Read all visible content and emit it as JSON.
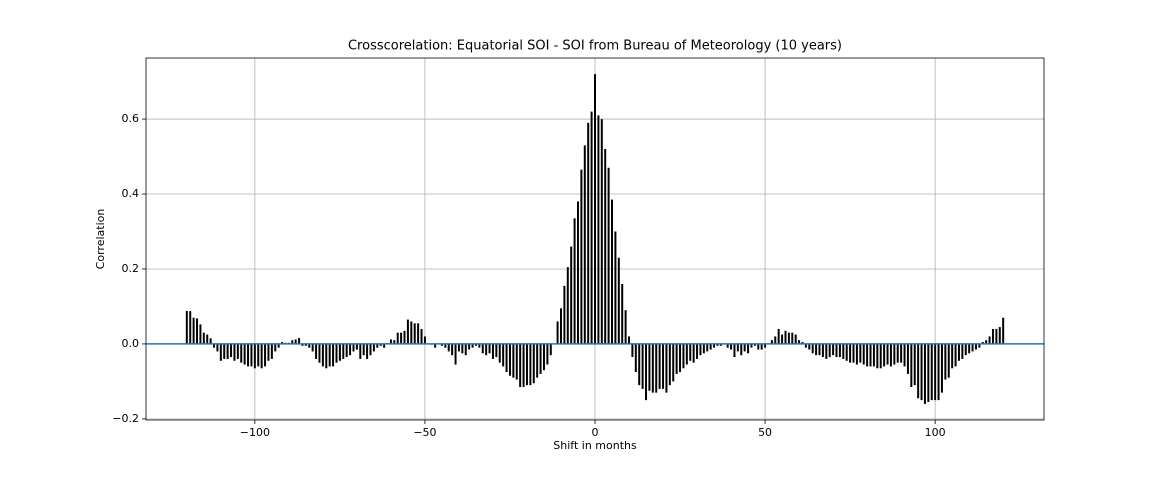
{
  "chart_data": {
    "type": "xcorr",
    "title": "Crosscorelation: Equatorial SOI - SOI from Bureau of Meteorology (10 years)",
    "xlabel": "Shift in months",
    "ylabel": "Correlation",
    "color": "#000000",
    "zero_line_color": "#1f77b4",
    "grid": true,
    "xlim": [
      -132,
      132
    ],
    "ylim": [
      -0.203,
      0.763
    ],
    "xticks": [
      {
        "value": -100,
        "label": "−100"
      },
      {
        "value": -50,
        "label": "−50"
      },
      0,
      50,
      100
    ],
    "yticks": [
      {
        "value": -0.2,
        "label": "−0.2"
      },
      {
        "value": 0,
        "label": "0.0"
      },
      0.2,
      0.4,
      0.6
    ],
    "x": [
      -120,
      -119,
      -118,
      -117,
      -116,
      -115,
      -114,
      -113,
      -112,
      -111,
      -110,
      -109,
      -108,
      -107,
      -106,
      -105,
      -104,
      -103,
      -102,
      -101,
      -100,
      -99,
      -98,
      -97,
      -96,
      -95,
      -94,
      -93,
      -92,
      -91,
      -90,
      -89,
      -88,
      -87,
      -86,
      -85,
      -84,
      -83,
      -82,
      -81,
      -80,
      -79,
      -78,
      -77,
      -76,
      -75,
      -74,
      -73,
      -72,
      -71,
      -70,
      -69,
      -68,
      -67,
      -66,
      -65,
      -64,
      -63,
      -62,
      -61,
      -60,
      -59,
      -58,
      -57,
      -56,
      -55,
      -54,
      -53,
      -52,
      -51,
      -50,
      -49,
      -48,
      -47,
      -46,
      -45,
      -44,
      -43,
      -42,
      -41,
      -40,
      -39,
      -38,
      -37,
      -36,
      -35,
      -34,
      -33,
      -32,
      -31,
      -30,
      -29,
      -28,
      -27,
      -26,
      -25,
      -24,
      -23,
      -22,
      -21,
      -20,
      -19,
      -18,
      -17,
      -16,
      -15,
      -14,
      -13,
      -12,
      -11,
      -10,
      -9,
      -8,
      -7,
      -6,
      -5,
      -4,
      -3,
      -2,
      -1,
      0,
      1,
      2,
      3,
      4,
      5,
      6,
      7,
      8,
      9,
      10,
      11,
      12,
      13,
      14,
      15,
      16,
      17,
      18,
      19,
      20,
      21,
      22,
      23,
      24,
      25,
      26,
      27,
      28,
      29,
      30,
      31,
      32,
      33,
      34,
      35,
      36,
      37,
      38,
      39,
      40,
      41,
      42,
      43,
      44,
      45,
      46,
      47,
      48,
      49,
      50,
      51,
      52,
      53,
      54,
      55,
      56,
      57,
      58,
      59,
      60,
      61,
      62,
      63,
      64,
      65,
      66,
      67,
      68,
      69,
      70,
      71,
      72,
      73,
      74,
      75,
      76,
      77,
      78,
      79,
      80,
      81,
      82,
      83,
      84,
      85,
      86,
      87,
      88,
      89,
      90,
      91,
      92,
      93,
      94,
      95,
      96,
      97,
      98,
      99,
      100,
      101,
      102,
      103,
      104,
      105,
      106,
      107,
      108,
      109,
      110,
      111,
      112,
      113,
      114,
      115,
      116,
      117,
      118,
      119,
      120
    ],
    "values": [
      0.088,
      0.088,
      0.07,
      0.068,
      0.052,
      0.03,
      0.025,
      0.015,
      -0.01,
      -0.02,
      -0.045,
      -0.04,
      -0.04,
      -0.035,
      -0.045,
      -0.04,
      -0.05,
      -0.055,
      -0.06,
      -0.06,
      -0.065,
      -0.06,
      -0.065,
      -0.06,
      -0.045,
      -0.04,
      -0.02,
      -0.01,
      0.005,
      0.003,
      0.003,
      0.01,
      0.012,
      0.016,
      -0.005,
      -0.005,
      -0.01,
      -0.02,
      -0.04,
      -0.05,
      -0.06,
      -0.065,
      -0.06,
      -0.06,
      -0.05,
      -0.045,
      -0.04,
      -0.035,
      -0.03,
      -0.02,
      -0.015,
      -0.04,
      -0.03,
      -0.04,
      -0.03,
      -0.02,
      -0.01,
      -0.005,
      -0.01,
      0.002,
      0.012,
      0.01,
      0.03,
      0.03,
      0.035,
      0.065,
      0.06,
      0.055,
      0.055,
      0.04,
      0.02,
      0.0,
      -0.002,
      -0.01,
      0.0,
      -0.005,
      -0.01,
      -0.02,
      -0.03,
      -0.055,
      -0.02,
      -0.025,
      -0.03,
      -0.015,
      -0.01,
      -0.005,
      -0.01,
      -0.025,
      -0.03,
      -0.025,
      -0.04,
      -0.035,
      -0.05,
      -0.06,
      -0.075,
      -0.085,
      -0.09,
      -0.095,
      -0.115,
      -0.115,
      -0.11,
      -0.11,
      -0.105,
      -0.09,
      -0.08,
      -0.07,
      -0.055,
      -0.03,
      0.0,
      0.06,
      0.095,
      0.155,
      0.205,
      0.26,
      0.335,
      0.38,
      0.465,
      0.53,
      0.59,
      0.62,
      0.72,
      0.61,
      0.6,
      0.52,
      0.47,
      0.385,
      0.3,
      0.23,
      0.16,
      0.09,
      0.02,
      -0.035,
      -0.075,
      -0.11,
      -0.12,
      -0.15,
      -0.125,
      -0.13,
      -0.13,
      -0.12,
      -0.12,
      -0.13,
      -0.11,
      -0.1,
      -0.08,
      -0.075,
      -0.065,
      -0.055,
      -0.045,
      -0.05,
      -0.04,
      -0.03,
      -0.025,
      -0.02,
      -0.015,
      -0.01,
      -0.005,
      -0.005,
      0.0,
      -0.01,
      -0.015,
      -0.035,
      -0.02,
      -0.03,
      -0.02,
      -0.025,
      -0.01,
      -0.005,
      -0.015,
      -0.015,
      -0.01,
      0.0,
      0.01,
      0.02,
      0.04,
      0.025,
      0.035,
      0.03,
      0.03,
      0.025,
      0.01,
      0.005,
      -0.01,
      -0.015,
      -0.025,
      -0.03,
      -0.03,
      -0.035,
      -0.04,
      -0.035,
      -0.03,
      -0.035,
      -0.035,
      -0.04,
      -0.045,
      -0.05,
      -0.05,
      -0.055,
      -0.05,
      -0.055,
      -0.06,
      -0.06,
      -0.06,
      -0.065,
      -0.065,
      -0.06,
      -0.055,
      -0.06,
      -0.055,
      -0.05,
      -0.05,
      -0.06,
      -0.08,
      -0.115,
      -0.11,
      -0.145,
      -0.15,
      -0.16,
      -0.155,
      -0.15,
      -0.15,
      -0.15,
      -0.13,
      -0.095,
      -0.09,
      -0.065,
      -0.06,
      -0.045,
      -0.04,
      -0.03,
      -0.025,
      -0.02,
      -0.015,
      -0.01,
      0.005,
      0.01,
      0.02,
      0.04,
      0.04,
      0.045,
      0.07
    ]
  }
}
